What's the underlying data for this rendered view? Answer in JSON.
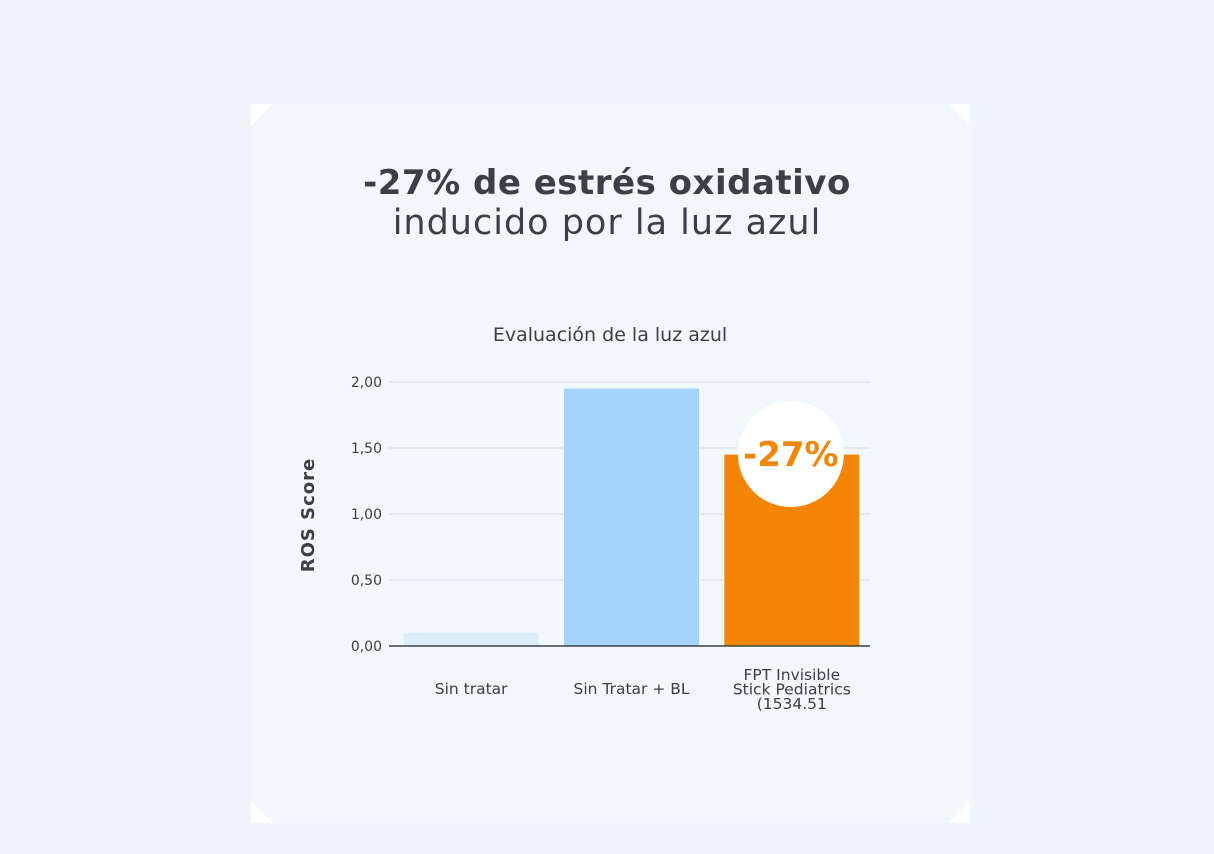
{
  "headline": {
    "line1": "-27% de estrés oxidativo",
    "line2": "inducido por la luz azul"
  },
  "chart_data": {
    "type": "bar",
    "title": "Evaluación de la luz azul",
    "ylabel": "ROS Score",
    "xlabel": "",
    "ylim": [
      0,
      2
    ],
    "yticks": [
      "0,00",
      "0,50",
      "1,00",
      "1,50",
      "2,00"
    ],
    "ytick_values": [
      0,
      0.5,
      1,
      1.5,
      2
    ],
    "grid": true,
    "categories": [
      [
        "Sin tratar"
      ],
      [
        "Sin Tratar + BL"
      ],
      [
        "FPT Invisible",
        "Stick Pediatrics",
        "(1534.51"
      ]
    ],
    "values": [
      0.1,
      1.95,
      1.45
    ],
    "colors": [
      "#ddeefb",
      "#a6d3fc",
      "#f58505"
    ],
    "annotation": {
      "bar_index": 2,
      "text": "-27%",
      "color": "#f0870a"
    }
  }
}
